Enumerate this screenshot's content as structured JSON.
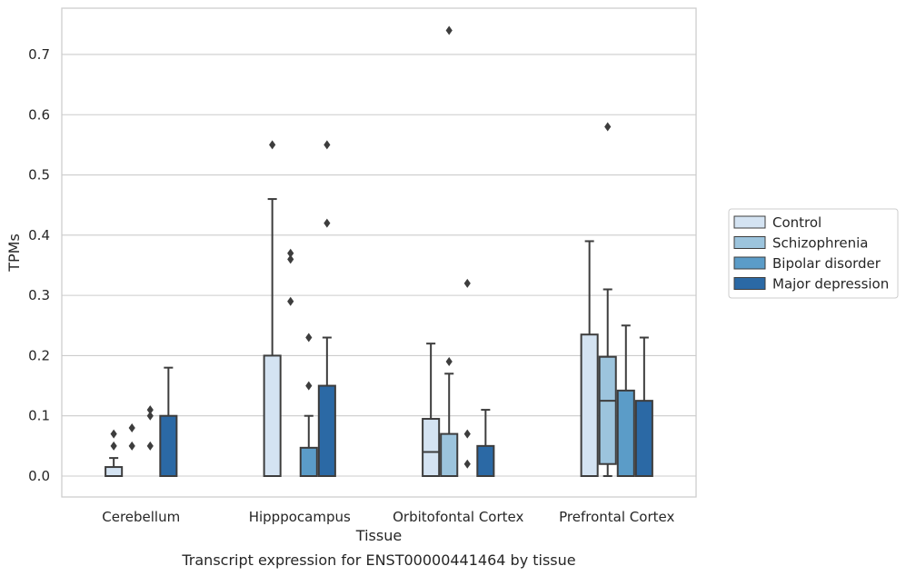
{
  "chart_data": {
    "type": "box",
    "title": "",
    "caption": "Transcript expression for ENST00000441464 by tissue",
    "xlabel": "Tissue",
    "ylabel": "TPMs",
    "ylim": [
      -0.035,
      0.775
    ],
    "yticks": [
      "0.0",
      "0.1",
      "0.2",
      "0.3",
      "0.4",
      "0.5",
      "0.6",
      "0.7"
    ],
    "grid": "horizontal",
    "legend_position": "right",
    "categories": [
      "Cerebellum",
      "Hipppocampus",
      "Orbitofontal Cortex",
      "Prefrontal Cortex"
    ],
    "series": [
      {
        "name": "Control",
        "color": "#d4e3f2",
        "boxes": [
          {
            "q1": 0.0,
            "median": 0.0,
            "q3": 0.015,
            "whisker_low": 0.0,
            "whisker_high": 0.03,
            "outliers": [
              0.05,
              0.07
            ]
          },
          {
            "q1": 0.0,
            "median": 0.0,
            "q3": 0.2,
            "whisker_low": 0.0,
            "whisker_high": 0.46,
            "outliers": [
              0.55
            ]
          },
          {
            "q1": 0.0,
            "median": 0.04,
            "q3": 0.095,
            "whisker_low": 0.0,
            "whisker_high": 0.22,
            "outliers": []
          },
          {
            "q1": 0.0,
            "median": 0.0,
            "q3": 0.235,
            "whisker_low": 0.0,
            "whisker_high": 0.39,
            "outliers": []
          }
        ]
      },
      {
        "name": "Schizophrenia",
        "color": "#9cc4dd",
        "boxes": [
          {
            "q1": 0.0,
            "median": 0.0,
            "q3": 0.0,
            "whisker_low": 0.0,
            "whisker_high": 0.0,
            "outliers": [
              0.05,
              0.08
            ]
          },
          {
            "q1": 0.0,
            "median": 0.0,
            "q3": 0.0,
            "whisker_low": 0.0,
            "whisker_high": 0.0,
            "outliers": [
              0.29,
              0.36,
              0.37
            ]
          },
          {
            "q1": 0.0,
            "median": 0.0,
            "q3": 0.07,
            "whisker_low": 0.0,
            "whisker_high": 0.17,
            "outliers": [
              0.19,
              0.74
            ]
          },
          {
            "q1": 0.02,
            "median": 0.125,
            "q3": 0.198,
            "whisker_low": 0.0,
            "whisker_high": 0.31,
            "outliers": [
              0.58
            ]
          }
        ]
      },
      {
        "name": "Bipolar disorder",
        "color": "#5b9cc8",
        "boxes": [
          {
            "q1": 0.0,
            "median": 0.0,
            "q3": 0.0,
            "whisker_low": 0.0,
            "whisker_high": 0.0,
            "outliers": [
              0.05,
              0.1,
              0.11
            ]
          },
          {
            "q1": 0.0,
            "median": 0.0,
            "q3": 0.047,
            "whisker_low": 0.0,
            "whisker_high": 0.1,
            "outliers": [
              0.15,
              0.23
            ]
          },
          {
            "q1": 0.0,
            "median": 0.0,
            "q3": 0.0,
            "whisker_low": 0.0,
            "whisker_high": 0.0,
            "outliers": [
              0.02,
              0.07,
              0.32
            ]
          },
          {
            "q1": 0.0,
            "median": 0.0,
            "q3": 0.142,
            "whisker_low": 0.0,
            "whisker_high": 0.25,
            "outliers": []
          }
        ]
      },
      {
        "name": "Major depression",
        "color": "#2b69a5",
        "boxes": [
          {
            "q1": 0.0,
            "median": 0.0,
            "q3": 0.1,
            "whisker_low": 0.0,
            "whisker_high": 0.18,
            "outliers": []
          },
          {
            "q1": 0.0,
            "median": 0.0,
            "q3": 0.15,
            "whisker_low": 0.0,
            "whisker_high": 0.23,
            "outliers": [
              0.42,
              0.55
            ]
          },
          {
            "q1": 0.0,
            "median": 0.0,
            "q3": 0.05,
            "whisker_low": 0.0,
            "whisker_high": 0.11,
            "outliers": []
          },
          {
            "q1": 0.0,
            "median": 0.0,
            "q3": 0.125,
            "whisker_low": 0.0,
            "whisker_high": 0.23,
            "outliers": []
          }
        ]
      }
    ]
  }
}
